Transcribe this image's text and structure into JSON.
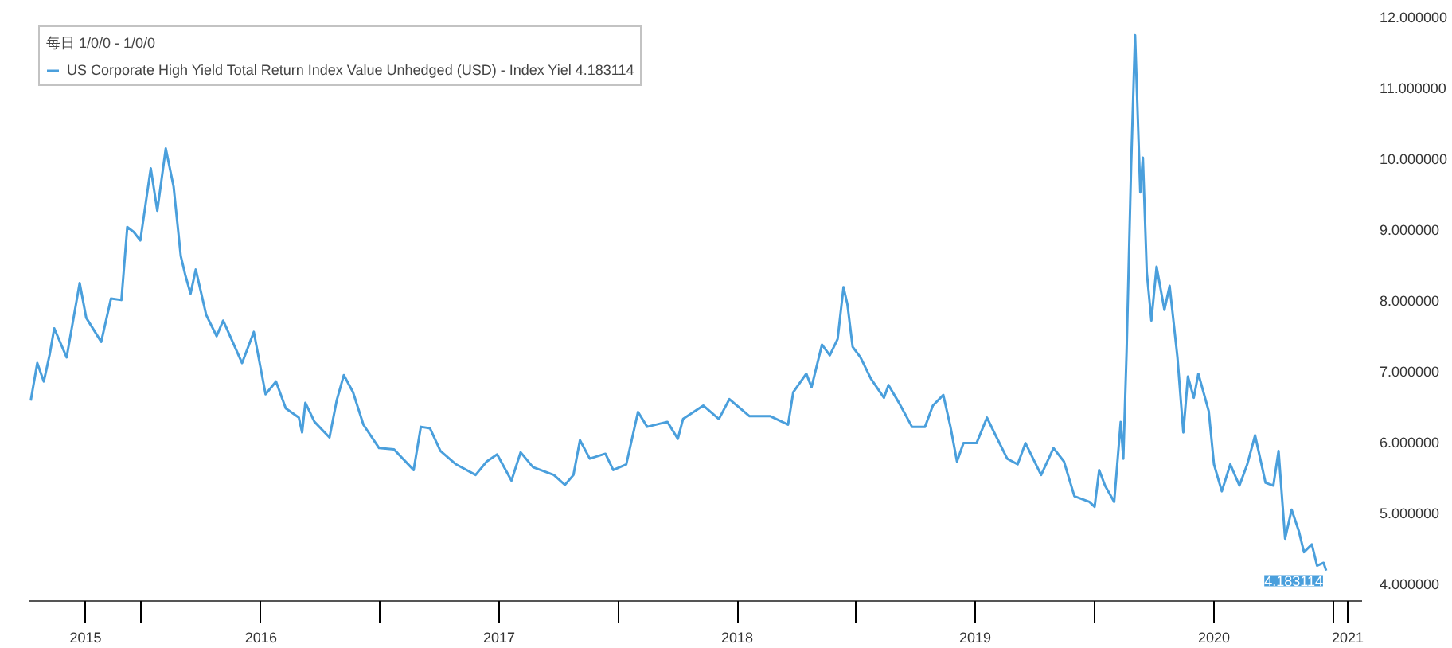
{
  "chart_data": {
    "type": "line",
    "legend_title": "每日 1/0/0 - 1/0/0",
    "legend": "top left",
    "xlim": [
      "2015-07-13",
      "2021-02-14"
    ],
    "xticks": [
      {
        "value": "2015-10-07",
        "label": "2015"
      },
      {
        "value": "2016-01-01",
        "label": null
      },
      {
        "value": "2016-07-02",
        "label": "2016"
      },
      {
        "value": "2017-01-01",
        "label": null
      },
      {
        "value": "2017-07-02",
        "label": "2017"
      },
      {
        "value": "2018-01-01",
        "label": null
      },
      {
        "value": "2018-07-02",
        "label": "2018"
      },
      {
        "value": "2019-01-01",
        "label": null
      },
      {
        "value": "2019-07-02",
        "label": "2019"
      },
      {
        "value": "2020-01-01",
        "label": null
      },
      {
        "value": "2020-07-02",
        "label": "2020"
      },
      {
        "value": "2021-01-01",
        "label": null
      },
      {
        "value": "2021-01-23",
        "label": "2021"
      }
    ],
    "ylim": [
      3.75,
      12.0
    ],
    "yticks": [
      {
        "value": 4,
        "label": "4.000000"
      },
      {
        "value": 5,
        "label": "5.000000"
      },
      {
        "value": 6,
        "label": "6.000000"
      },
      {
        "value": 7,
        "label": "7.000000"
      },
      {
        "value": 8,
        "label": "8.000000"
      },
      {
        "value": 9,
        "label": "9.000000"
      },
      {
        "value": 10,
        "label": "10.000000"
      },
      {
        "value": 11,
        "label": "11.000000"
      },
      {
        "value": 12,
        "label": "12.000000"
      }
    ],
    "grid": false,
    "marker": "none",
    "line_style": "solid",
    "annotations": [
      {
        "text": "4.183114",
        "x": "2020-12-21",
        "y": 4.183114
      }
    ],
    "series": [
      {
        "name": "US Corporate High Yield Total Return Index Value Unhedged (USD) - Index Yiel 4.183114",
        "color": "#4a9fdc",
        "x": [
          "2015-07-15",
          "2015-07-25",
          "2015-08-04",
          "2015-08-13",
          "2015-08-20",
          "2015-09-08",
          "2015-09-28",
          "2015-10-08",
          "2015-10-31",
          "2015-11-15",
          "2015-12-01",
          "2015-12-10",
          "2015-12-20",
          "2015-12-30",
          "2016-01-15",
          "2016-01-25",
          "2016-02-07",
          "2016-02-19",
          "2016-03-01",
          "2016-03-08",
          "2016-03-16",
          "2016-03-24",
          "2016-04-09",
          "2016-04-25",
          "2016-05-05",
          "2016-06-03",
          "2016-06-21",
          "2016-07-09",
          "2016-07-25",
          "2016-08-09",
          "2016-08-29",
          "2016-09-03",
          "2016-09-08",
          "2016-09-22",
          "2016-10-15",
          "2016-10-26",
          "2016-11-06",
          "2016-11-20",
          "2016-12-06",
          "2016-12-30",
          "2017-01-22",
          "2017-02-21",
          "2017-03-04",
          "2017-03-18",
          "2017-04-03",
          "2017-04-27",
          "2017-05-27",
          "2017-06-13",
          "2017-06-29",
          "2017-07-21",
          "2017-08-04",
          "2017-08-23",
          "2017-09-24",
          "2017-10-11",
          "2017-10-24",
          "2017-11-03",
          "2017-11-18",
          "2017-12-12",
          "2017-12-24",
          "2018-01-13",
          "2018-01-31",
          "2018-02-14",
          "2018-03-17",
          "2018-04-02",
          "2018-04-10",
          "2018-05-11",
          "2018-06-04",
          "2018-06-20",
          "2018-07-21",
          "2018-08-22",
          "2018-09-18",
          "2018-09-26",
          "2018-10-16",
          "2018-10-24",
          "2018-11-09",
          "2018-11-21",
          "2018-12-03",
          "2018-12-12",
          "2018-12-18",
          "2018-12-26",
          "2019-01-07",
          "2019-01-23",
          "2019-02-12",
          "2019-02-19",
          "2019-03-07",
          "2019-03-27",
          "2019-04-16",
          "2019-04-28",
          "2019-05-14",
          "2019-05-25",
          "2019-06-04",
          "2019-06-14",
          "2019-07-04",
          "2019-07-20",
          "2019-07-31",
          "2019-08-20",
          "2019-09-05",
          "2019-09-17",
          "2019-10-11",
          "2019-10-30",
          "2019-11-15",
          "2019-12-01",
          "2019-12-24",
          "2020-01-01",
          "2020-01-08",
          "2020-01-17",
          "2020-01-31",
          "2020-02-10",
          "2020-02-14",
          "2020-02-19",
          "2020-02-26",
          "2020-03-03",
          "2020-03-11",
          "2020-03-15",
          "2020-03-21",
          "2020-03-28",
          "2020-04-05",
          "2020-04-17",
          "2020-04-25",
          "2020-05-07",
          "2020-05-16",
          "2020-05-23",
          "2020-06-01",
          "2020-06-08",
          "2020-06-24",
          "2020-07-02",
          "2020-07-14",
          "2020-07-27",
          "2020-08-10",
          "2020-08-22",
          "2020-09-03",
          "2020-09-19",
          "2020-10-01",
          "2020-10-09",
          "2020-10-19",
          "2020-10-29",
          "2020-11-09",
          "2020-11-17",
          "2020-11-29",
          "2020-12-07",
          "2020-12-17",
          "2020-12-21"
        ],
        "values": [
          6.58,
          7.11,
          6.85,
          7.23,
          7.6,
          7.19,
          8.24,
          7.75,
          7.41,
          8.02,
          8.0,
          9.03,
          8.96,
          8.84,
          9.86,
          9.26,
          10.14,
          9.6,
          8.62,
          8.35,
          8.09,
          8.43,
          7.79,
          7.49,
          7.71,
          7.11,
          7.55,
          6.67,
          6.85,
          6.47,
          6.34,
          6.13,
          6.55,
          6.28,
          6.06,
          6.58,
          6.94,
          6.7,
          6.24,
          5.91,
          5.89,
          5.6,
          6.21,
          6.19,
          5.87,
          5.68,
          5.53,
          5.72,
          5.82,
          5.45,
          5.85,
          5.64,
          5.53,
          5.39,
          5.53,
          6.02,
          5.76,
          5.83,
          5.6,
          5.68,
          6.42,
          6.21,
          6.28,
          6.04,
          6.32,
          6.51,
          6.32,
          6.6,
          6.36,
          6.36,
          6.24,
          6.7,
          6.96,
          6.77,
          7.37,
          7.22,
          7.45,
          8.18,
          7.94,
          7.34,
          7.19,
          6.89,
          6.62,
          6.8,
          6.55,
          6.21,
          6.21,
          6.51,
          6.66,
          6.21,
          5.72,
          5.98,
          5.98,
          6.34,
          6.13,
          5.76,
          5.68,
          5.98,
          5.53,
          5.91,
          5.72,
          5.23,
          5.15,
          5.08,
          5.6,
          5.38,
          5.15,
          6.28,
          5.76,
          7.26,
          9.9,
          11.74,
          9.52,
          10.01,
          8.39,
          7.71,
          8.47,
          7.86,
          8.2,
          7.19,
          6.13,
          6.92,
          6.62,
          6.96,
          6.43,
          5.68,
          5.3,
          5.68,
          5.38,
          5.68,
          6.09,
          5.42,
          5.38,
          5.87,
          4.63,
          5.04,
          4.74,
          4.44,
          4.55,
          4.25,
          4.29,
          4.18
        ]
      }
    ]
  }
}
